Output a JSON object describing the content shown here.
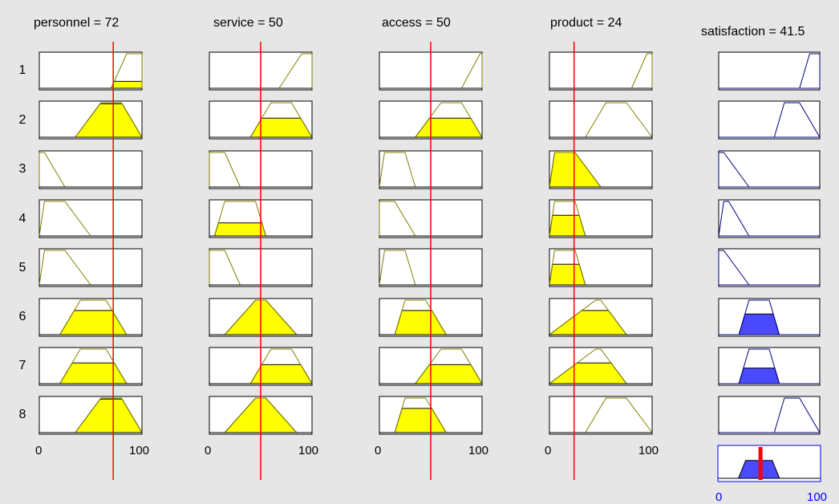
{
  "app": "Rule Viewer",
  "inputs": [
    {
      "name": "personnel",
      "value": 72,
      "header": "personnel = 72"
    },
    {
      "name": "service",
      "value": 50,
      "header": "service = 50"
    },
    {
      "name": "access",
      "value": 50,
      "header": "access = 50"
    },
    {
      "name": "product",
      "value": 24,
      "header": "product = 24"
    }
  ],
  "output": {
    "name": "satisfaction",
    "value": 41.5,
    "header": "satisfaction = 41.5"
  },
  "rules": [
    "1",
    "2",
    "3",
    "4",
    "5",
    "6",
    "7",
    "8"
  ],
  "input_axis": {
    "min_label": "0",
    "max_label": "100"
  },
  "output_axis": {
    "min_label": "0",
    "max_label": "100"
  },
  "colors": {
    "background": "#e6e6e6",
    "input_fill": "#ffff00",
    "input_outline": "#808000",
    "output_fill": "#4a4aff",
    "output_outline": "#000080",
    "indicator_line": "#ff0000"
  },
  "rule_memberships": [
    {
      "in": [
        {
          "mf": [
            70,
            85,
            100,
            100
          ],
          "lvl": 0.2
        },
        {
          "mf": [
            68,
            90,
            100,
            100
          ],
          "lvl": 0
        },
        {
          "mf": [
            80,
            98,
            100,
            100
          ],
          "lvl": 0
        },
        {
          "mf": [
            80,
            95,
            100,
            100
          ],
          "lvl": 0
        }
      ],
      "out": {
        "mf": [
          80,
          90,
          100,
          100
        ],
        "lvl": 0
      }
    },
    {
      "in": [
        {
          "mf": [
            35,
            60,
            80,
            100
          ],
          "lvl": 0.97
        },
        {
          "mf": [
            40,
            60,
            80,
            100
          ],
          "lvl": 0.55
        },
        {
          "mf": [
            35,
            60,
            80,
            100
          ],
          "lvl": 0.55
        },
        {
          "mf": [
            35,
            55,
            75,
            100
          ],
          "lvl": 0
        }
      ],
      "out": {
        "mf": [
          55,
          65,
          80,
          100
        ],
        "lvl": 0
      }
    },
    {
      "in": [
        {
          "mf": [
            0,
            0,
            5,
            25
          ],
          "lvl": 0
        },
        {
          "mf": [
            0,
            0,
            15,
            30
          ],
          "lvl": 0
        },
        {
          "mf": [
            0,
            5,
            25,
            35
          ],
          "lvl": 0
        },
        {
          "mf": [
            0,
            5,
            25,
            50
          ],
          "lvl": 1
        }
      ],
      "out": {
        "mf": [
          0,
          0,
          5,
          30
        ],
        "lvl": 0
      }
    },
    {
      "in": [
        {
          "mf": [
            0,
            5,
            25,
            50
          ],
          "lvl": 0
        },
        {
          "mf": [
            5,
            15,
            45,
            55
          ],
          "lvl": 0.38
        },
        {
          "mf": [
            0,
            0,
            15,
            35
          ],
          "lvl": 0
        },
        {
          "mf": [
            0,
            5,
            25,
            35
          ],
          "lvl": 0.6
        }
      ],
      "out": {
        "mf": [
          0,
          5,
          10,
          30
        ],
        "lvl": 0
      }
    },
    {
      "in": [
        {
          "mf": [
            0,
            5,
            25,
            50
          ],
          "lvl": 0
        },
        {
          "mf": [
            0,
            0,
            15,
            30
          ],
          "lvl": 0
        },
        {
          "mf": [
            0,
            5,
            25,
            35
          ],
          "lvl": 0
        },
        {
          "mf": [
            0,
            5,
            25,
            35
          ],
          "lvl": 0.6
        }
      ],
      "out": {
        "mf": [
          0,
          0,
          5,
          30
        ],
        "lvl": 0
      }
    },
    {
      "in": [
        {
          "mf": [
            20,
            40,
            65,
            85
          ],
          "lvl": 0.7
        },
        {
          "mf": [
            15,
            45,
            55,
            85
          ],
          "lvl": 1
        },
        {
          "mf": [
            15,
            25,
            45,
            65
          ],
          "lvl": 0.7
        },
        {
          "mf": [
            0,
            45,
            50,
            75
          ],
          "lvl": 0.7
        }
      ],
      "out": {
        "mf": [
          20,
          30,
          50,
          60
        ],
        "lvl": 0.6
      }
    },
    {
      "in": [
        {
          "mf": [
            20,
            40,
            65,
            85
          ],
          "lvl": 0.6
        },
        {
          "mf": [
            40,
            60,
            80,
            100
          ],
          "lvl": 0.55
        },
        {
          "mf": [
            35,
            60,
            80,
            100
          ],
          "lvl": 0.55
        },
        {
          "mf": [
            0,
            45,
            50,
            75
          ],
          "lvl": 0.6
        }
      ],
      "out": {
        "mf": [
          20,
          30,
          50,
          60
        ],
        "lvl": 0.45
      }
    },
    {
      "in": [
        {
          "mf": [
            35,
            60,
            80,
            100
          ],
          "lvl": 0.97
        },
        {
          "mf": [
            15,
            45,
            55,
            85
          ],
          "lvl": 1
        },
        {
          "mf": [
            15,
            25,
            45,
            65
          ],
          "lvl": 0.7
        },
        {
          "mf": [
            35,
            55,
            75,
            100
          ],
          "lvl": 0
        }
      ],
      "out": {
        "mf": [
          55,
          65,
          80,
          100
        ],
        "lvl": 0
      }
    }
  ],
  "aggregate_mf": {
    "points": [
      [
        0,
        0
      ],
      [
        20,
        0
      ],
      [
        27,
        0.6
      ],
      [
        53,
        0.6
      ],
      [
        60,
        0
      ],
      [
        100,
        0
      ]
    ]
  }
}
